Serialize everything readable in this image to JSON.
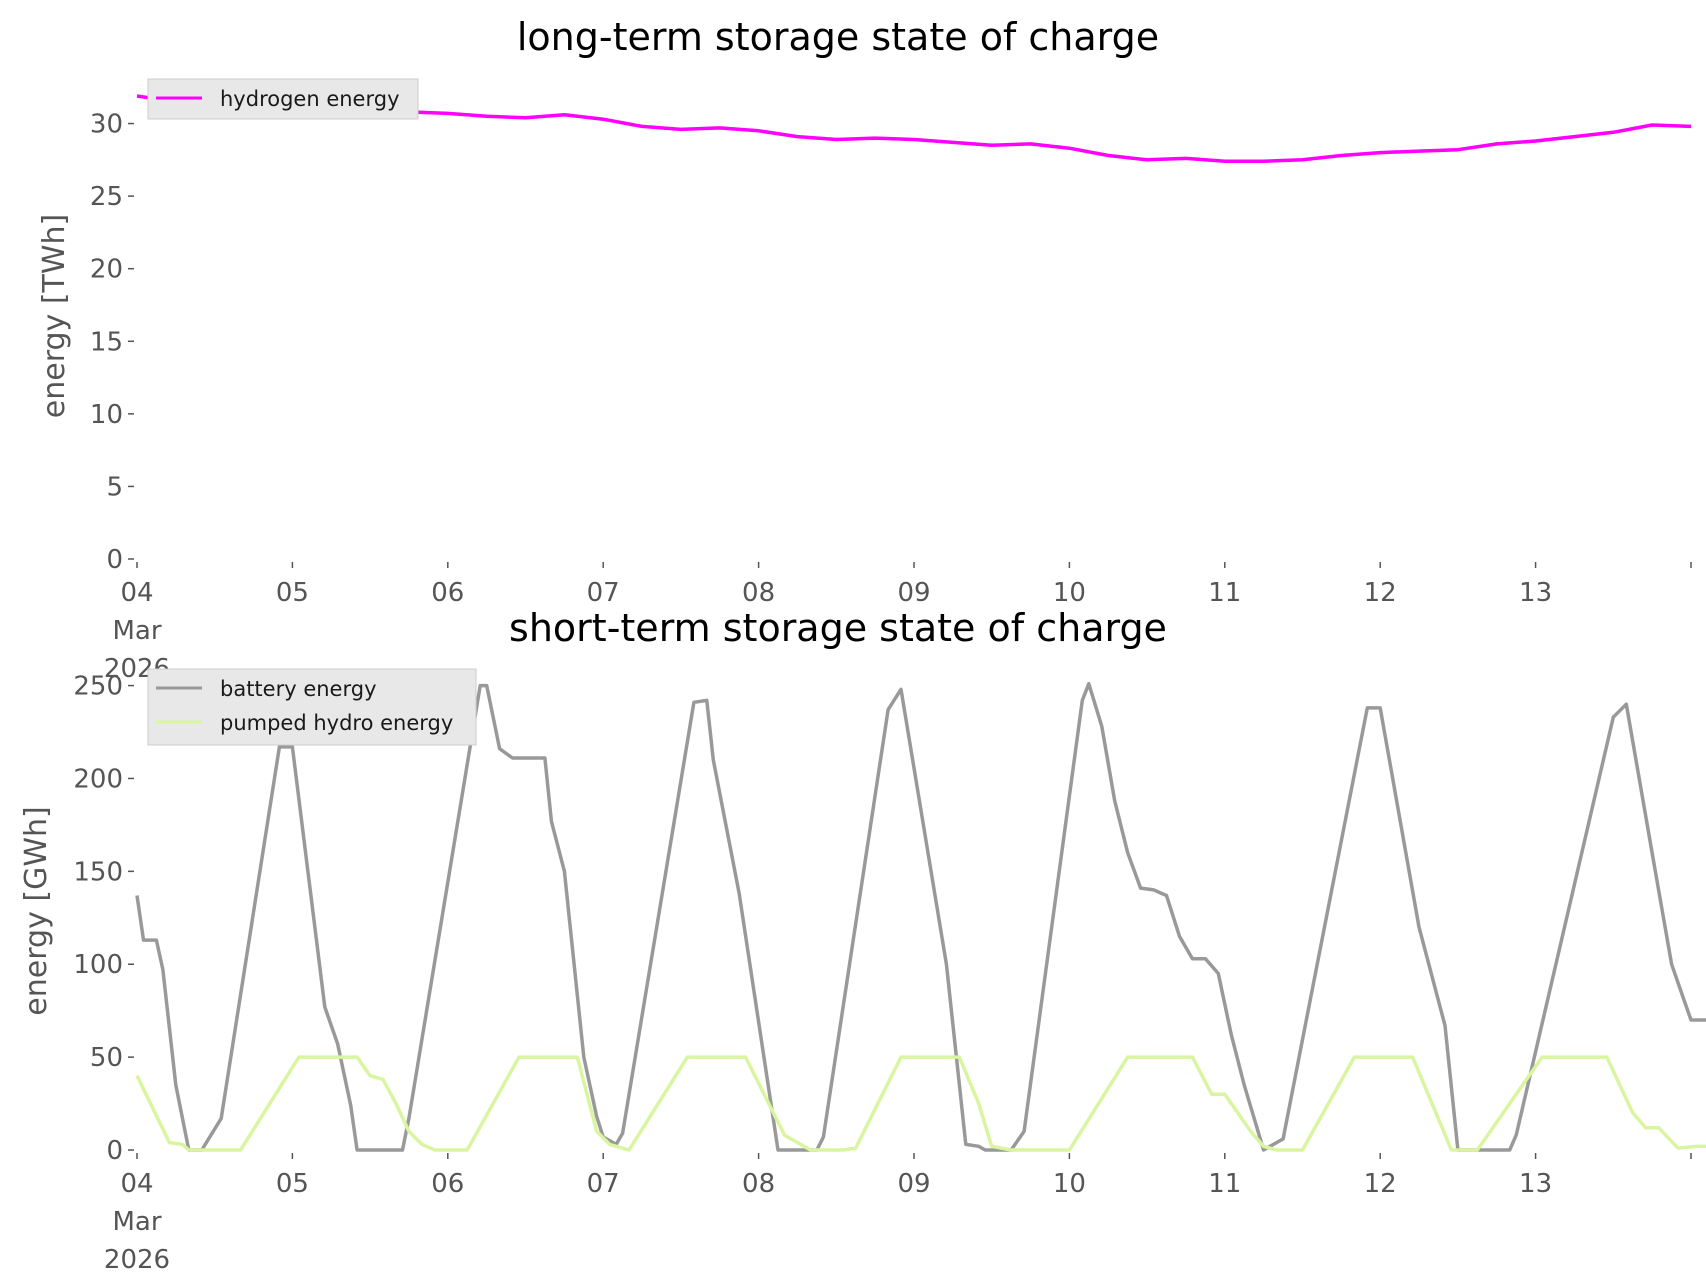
{
  "chart_data": [
    {
      "type": "line",
      "title": "long-term storage state of charge",
      "xlabel": "",
      "ylabel": "energy [TWh]",
      "xlim": [
        "2026-03-04",
        "2026-03-14"
      ],
      "ylim": [
        0,
        33
      ],
      "x_tick_labels": [
        "04\nMar\n2026",
        "05",
        "06",
        "07",
        "08",
        "09",
        "10",
        "11",
        "12",
        "13"
      ],
      "y_ticks": [
        0,
        5,
        10,
        15,
        20,
        25,
        30
      ],
      "grid": false,
      "legend": "top-left",
      "series": [
        {
          "name": "hydrogen energy",
          "color": "#ff00ff",
          "points": [
            [
              "2026-03-04 00:00",
              31.9
            ],
            [
              "2026-03-04 06:00",
              31.5
            ],
            [
              "2026-03-04 12:00",
              31.2
            ],
            [
              "2026-03-04 18:00",
              31.0
            ],
            [
              "2026-03-05 00:00",
              30.9
            ],
            [
              "2026-03-05 06:00",
              30.6
            ],
            [
              "2026-03-05 12:00",
              30.6
            ],
            [
              "2026-03-05 18:00",
              30.8
            ],
            [
              "2026-03-06 00:00",
              30.7
            ],
            [
              "2026-03-06 06:00",
              30.5
            ],
            [
              "2026-03-06 12:00",
              30.4
            ],
            [
              "2026-03-06 18:00",
              30.6
            ],
            [
              "2026-03-07 00:00",
              30.3
            ],
            [
              "2026-03-07 06:00",
              29.8
            ],
            [
              "2026-03-07 12:00",
              29.6
            ],
            [
              "2026-03-07 18:00",
              29.7
            ],
            [
              "2026-03-08 00:00",
              29.5
            ],
            [
              "2026-03-08 06:00",
              29.1
            ],
            [
              "2026-03-08 12:00",
              28.9
            ],
            [
              "2026-03-08 18:00",
              29.0
            ],
            [
              "2026-03-09 00:00",
              28.9
            ],
            [
              "2026-03-09 06:00",
              28.7
            ],
            [
              "2026-03-09 12:00",
              28.5
            ],
            [
              "2026-03-09 18:00",
              28.6
            ],
            [
              "2026-03-10 00:00",
              28.3
            ],
            [
              "2026-03-10 06:00",
              27.8
            ],
            [
              "2026-03-10 12:00",
              27.5
            ],
            [
              "2026-03-10 18:00",
              27.6
            ],
            [
              "2026-03-11 00:00",
              27.4
            ],
            [
              "2026-03-11 06:00",
              27.4
            ],
            [
              "2026-03-11 12:00",
              27.5
            ],
            [
              "2026-03-11 18:00",
              27.8
            ],
            [
              "2026-03-12 00:00",
              28.0
            ],
            [
              "2026-03-12 06:00",
              28.1
            ],
            [
              "2026-03-12 12:00",
              28.2
            ],
            [
              "2026-03-12 18:00",
              28.6
            ],
            [
              "2026-03-13 00:00",
              28.8
            ],
            [
              "2026-03-13 06:00",
              29.1
            ],
            [
              "2026-03-13 12:00",
              29.4
            ],
            [
              "2026-03-13 18:00",
              29.9
            ],
            [
              "2026-03-14 00:00",
              29.8
            ]
          ]
        }
      ]
    },
    {
      "type": "line",
      "title": "short-term storage state of charge",
      "xlabel": "",
      "ylabel": "energy [GWh]",
      "xlim": [
        "2026-03-04",
        "2026-03-14"
      ],
      "ylim": [
        0,
        260
      ],
      "x_tick_labels": [
        "04\nMar\n2026",
        "05",
        "06",
        "07",
        "08",
        "09",
        "10",
        "11",
        "12",
        "13"
      ],
      "y_ticks": [
        0,
        50,
        100,
        150,
        200,
        250
      ],
      "grid": false,
      "legend": "top-left",
      "series": [
        {
          "name": "battery energy",
          "color": "#999999",
          "points": [
            [
              "2026-03-04 00:00",
              137
            ],
            [
              "2026-03-04 01:00",
              113
            ],
            [
              "2026-03-04 03:00",
              113
            ],
            [
              "2026-03-04 04:00",
              97
            ],
            [
              "2026-03-04 06:00",
              35
            ],
            [
              "2026-03-04 08:00",
              0
            ],
            [
              "2026-03-04 10:00",
              0
            ],
            [
              "2026-03-04 13:00",
              17
            ],
            [
              "2026-03-04 22:00",
              217
            ],
            [
              "2026-03-05 00:00",
              217
            ],
            [
              "2026-03-05 05:00",
              77
            ],
            [
              "2026-03-05 07:00",
              57
            ],
            [
              "2026-03-05 09:00",
              24
            ],
            [
              "2026-03-05 10:00",
              0
            ],
            [
              "2026-03-05 17:00",
              0
            ],
            [
              "2026-03-05 18:00",
              17
            ],
            [
              "2026-03-06 05:00",
              250
            ],
            [
              "2026-03-06 06:00",
              250
            ],
            [
              "2026-03-06 08:00",
              216
            ],
            [
              "2026-03-06 10:00",
              211
            ],
            [
              "2026-03-06 15:00",
              211
            ],
            [
              "2026-03-06 16:00",
              177
            ],
            [
              "2026-03-06 18:00",
              150
            ],
            [
              "2026-03-06 21:00",
              50
            ],
            [
              "2026-03-06 23:00",
              18
            ],
            [
              "2026-03-07 00:00",
              7
            ],
            [
              "2026-03-07 02:00",
              3
            ],
            [
              "2026-03-07 03:00",
              9
            ],
            [
              "2026-03-07 14:00",
              241
            ],
            [
              "2026-03-07 16:00",
              242
            ],
            [
              "2026-03-07 17:00",
              210
            ],
            [
              "2026-03-07 21:00",
              138
            ],
            [
              "2026-03-08 03:00",
              0
            ],
            [
              "2026-03-08 09:00",
              0
            ],
            [
              "2026-03-08 10:00",
              7
            ],
            [
              "2026-03-08 20:00",
              237
            ],
            [
              "2026-03-08 22:00",
              248
            ],
            [
              "2026-03-09 05:00",
              100
            ],
            [
              "2026-03-09 08:00",
              3
            ],
            [
              "2026-03-09 10:00",
              2
            ],
            [
              "2026-03-09 11:00",
              0
            ],
            [
              "2026-03-09 15:00",
              0
            ],
            [
              "2026-03-09 17:00",
              10
            ],
            [
              "2026-03-10 02:00",
              242
            ],
            [
              "2026-03-10 03:00",
              251
            ],
            [
              "2026-03-10 05:00",
              228
            ],
            [
              "2026-03-10 07:00",
              188
            ],
            [
              "2026-03-10 09:00",
              160
            ],
            [
              "2026-03-10 11:00",
              141
            ],
            [
              "2026-03-10 13:00",
              140
            ],
            [
              "2026-03-10 15:00",
              137
            ],
            [
              "2026-03-10 17:00",
              115
            ],
            [
              "2026-03-10 19:00",
              103
            ],
            [
              "2026-03-10 21:00",
              103
            ],
            [
              "2026-03-10 23:00",
              95
            ],
            [
              "2026-03-11 01:00",
              62
            ],
            [
              "2026-03-11 03:00",
              35
            ],
            [
              "2026-03-11 06:00",
              0
            ],
            [
              "2026-03-11 09:00",
              6
            ],
            [
              "2026-03-11 22:00",
              238
            ],
            [
              "2026-03-12 00:00",
              238
            ],
            [
              "2026-03-12 06:00",
              120
            ],
            [
              "2026-03-12 10:00",
              67
            ],
            [
              "2026-03-12 12:00",
              0
            ],
            [
              "2026-03-12 20:00",
              0
            ],
            [
              "2026-03-12 21:00",
              8
            ],
            [
              "2026-03-13 12:00",
              233
            ],
            [
              "2026-03-13 14:00",
              240
            ],
            [
              "2026-03-13 18:00",
              160
            ],
            [
              "2026-03-13 21:00",
              100
            ],
            [
              "2026-03-13 23:00",
              80
            ],
            [
              "2026-03-14 00:00",
              70
            ],
            [
              "2026-03-14 08:00",
              70
            ]
          ]
        },
        {
          "name": "pumped hydro energy",
          "color": "#d9f5a0",
          "points": [
            [
              "2026-03-04 00:00",
              40
            ],
            [
              "2026-03-04 05:00",
              4
            ],
            [
              "2026-03-04 07:00",
              3
            ],
            [
              "2026-03-04 08:00",
              0
            ],
            [
              "2026-03-04 10:00",
              0
            ],
            [
              "2026-03-04 16:00",
              0
            ],
            [
              "2026-03-05 01:00",
              50
            ],
            [
              "2026-03-05 10:00",
              50
            ],
            [
              "2026-03-05 12:00",
              40
            ],
            [
              "2026-03-05 14:00",
              38
            ],
            [
              "2026-03-05 16:00",
              25
            ],
            [
              "2026-03-05 18:00",
              10
            ],
            [
              "2026-03-05 20:00",
              3
            ],
            [
              "2026-03-05 22:00",
              0
            ],
            [
              "2026-03-06 03:00",
              0
            ],
            [
              "2026-03-06 11:00",
              50
            ],
            [
              "2026-03-06 20:00",
              50
            ],
            [
              "2026-03-06 23:00",
              10
            ],
            [
              "2026-03-07 01:00",
              3
            ],
            [
              "2026-03-07 02:00",
              2
            ],
            [
              "2026-03-07 04:00",
              0
            ],
            [
              "2026-03-07 13:00",
              50
            ],
            [
              "2026-03-07 22:00",
              50
            ],
            [
              "2026-03-08 04:00",
              8
            ],
            [
              "2026-03-08 08:00",
              0
            ],
            [
              "2026-03-08 13:00",
              0
            ],
            [
              "2026-03-08 15:00",
              1
            ],
            [
              "2026-03-08 22:00",
              50
            ],
            [
              "2026-03-09 07:00",
              50
            ],
            [
              "2026-03-09 10:00",
              25
            ],
            [
              "2026-03-09 12:00",
              2
            ],
            [
              "2026-03-09 15:00",
              0
            ],
            [
              "2026-03-10 00:00",
              0
            ],
            [
              "2026-03-10 09:00",
              50
            ],
            [
              "2026-03-10 19:00",
              50
            ],
            [
              "2026-03-10 22:00",
              30
            ],
            [
              "2026-03-11 00:00",
              30
            ],
            [
              "2026-03-11 04:00",
              10
            ],
            [
              "2026-03-11 06:00",
              2
            ],
            [
              "2026-03-11 08:00",
              0
            ],
            [
              "2026-03-11 12:00",
              0
            ],
            [
              "2026-03-11 20:00",
              50
            ],
            [
              "2026-03-12 05:00",
              50
            ],
            [
              "2026-03-12 11:00",
              0
            ],
            [
              "2026-03-12 15:00",
              0
            ],
            [
              "2026-03-13 01:00",
              50
            ],
            [
              "2026-03-13 11:00",
              50
            ],
            [
              "2026-03-13 15:00",
              20
            ],
            [
              "2026-03-13 17:00",
              12
            ],
            [
              "2026-03-13 19:00",
              12
            ],
            [
              "2026-03-13 22:00",
              1
            ],
            [
              "2026-03-14 01:00",
              2
            ],
            [
              "2026-03-14 06:00",
              2
            ],
            [
              "2026-03-14 08:00",
              0
            ]
          ]
        }
      ]
    }
  ]
}
